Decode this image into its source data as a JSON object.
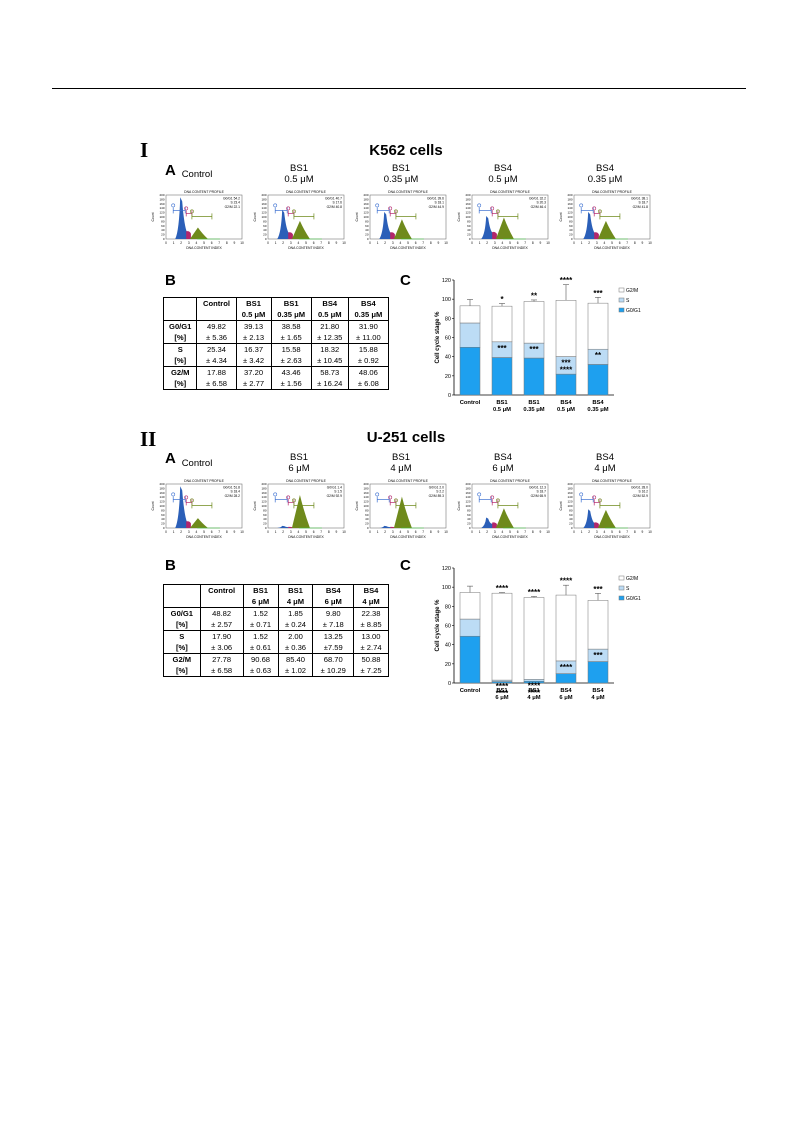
{
  "figure": {
    "section_I": {
      "roman": "I",
      "title": "K562 cells",
      "panel_A": "A",
      "panel_B": "B",
      "panel_C": "C",
      "histograms": [
        {
          "name_line1": "Control",
          "name_line2": "",
          "title": "DNA CONTENT PROFILE",
          "xlabel": "DNA CONTENT INDEX",
          "ylabel": "Count",
          "stats": [
            "G0/G1 54.2",
            "S 23.4",
            "G2/M 22.1"
          ],
          "g1": 1.0,
          "s": 0.35,
          "g2": 0.35
        },
        {
          "name_line1": "BS1",
          "name_line2": "0.5 μM",
          "title": "DNA CONTENT PROFILE",
          "xlabel": "DNA CONTENT INDEX",
          "ylabel": "Count",
          "stats": [
            "G0/G1 40.7",
            "S 17.6",
            "G2/M 40.8"
          ],
          "g1": 0.7,
          "s": 0.3,
          "g2": 0.55
        },
        {
          "name_line1": "BS1",
          "name_line2": "0.35 μM",
          "title": "DNA CONTENT PROFILE",
          "xlabel": "DNA CONTENT INDEX",
          "ylabel": "Count",
          "stats": [
            "G0/G1 39.6",
            "S 18.1",
            "G2/M 44.9"
          ],
          "g1": 0.65,
          "s": 0.3,
          "g2": 0.6
        },
        {
          "name_line1": "BS4",
          "name_line2": "0.5 μM",
          "title": "DNA CONTENT PROFILE",
          "xlabel": "DNA CONTENT INDEX",
          "ylabel": "Count",
          "stats": [
            "G0/G1 32.2",
            "S 20.3",
            "G2/M 46.4"
          ],
          "g1": 0.55,
          "s": 0.32,
          "g2": 0.65
        },
        {
          "name_line1": "BS4",
          "name_line2": "0.35 μM",
          "title": "DNA CONTENT PROFILE",
          "xlabel": "DNA CONTENT INDEX",
          "ylabel": "Count",
          "stats": [
            "G0/G1 38.1",
            "S 18.7",
            "G2/M 41.8"
          ],
          "g1": 0.65,
          "s": 0.3,
          "g2": 0.55
        }
      ],
      "table": {
        "headers": [
          [
            "",
            ""
          ],
          [
            "Control",
            ""
          ],
          [
            "BS1",
            "0.5 μM"
          ],
          [
            "BS1",
            "0.35 μM"
          ],
          [
            "BS4",
            "0.5 μM"
          ],
          [
            "BS4",
            "0.35 μM"
          ]
        ],
        "rows": [
          {
            "label": [
              "G0/G1",
              "[%]"
            ],
            "values": [
              [
                "49.82",
                "± 5.36"
              ],
              [
                "39.13",
                "± 2.13"
              ],
              [
                "38.58",
                "± 1.65"
              ],
              [
                "21.80",
                "± 12.35"
              ],
              [
                "31.90",
                "± 11.00"
              ]
            ]
          },
          {
            "label": [
              "S",
              "[%]"
            ],
            "values": [
              [
                "25.34",
                "± 4.34"
              ],
              [
                "16.37",
                "± 3.42"
              ],
              [
                "15.58",
                "± 2.63"
              ],
              [
                "18.32",
                "± 10.45"
              ],
              [
                "15.88",
                "± 0.92"
              ]
            ]
          },
          {
            "label": [
              "G2/M",
              "[%]"
            ],
            "values": [
              [
                "17.88",
                "± 6.58"
              ],
              [
                "37.20",
                "± 2.77"
              ],
              [
                "43.46",
                "± 1.56"
              ],
              [
                "58.73",
                "± 16.24"
              ],
              [
                "48.06",
                "± 6.08"
              ]
            ]
          }
        ]
      }
    },
    "section_II": {
      "roman": "II",
      "title": "U-251 cells",
      "panel_A": "A",
      "panel_B": "B",
      "panel_C": "C",
      "histograms": [
        {
          "name_line1": "Control",
          "name_line2": "",
          "title": "DNA CONTENT PROFILE",
          "xlabel": "DNA CONTENT INDEX",
          "ylabel": "Count",
          "stats": [
            "G0/G1 51.8",
            "S 18.4",
            "G2/M 28.2"
          ],
          "g1": 1.0,
          "s": 0.3,
          "g2": 0.3
        },
        {
          "name_line1": "BS1",
          "name_line2": "6 μM",
          "title": "DNA CONTENT PROFILE",
          "xlabel": "DNA CONTENT INDEX",
          "ylabel": "Count",
          "stats": [
            "G0/G1 1.4",
            "S 1.5",
            "G2/M 92.9"
          ],
          "g1": 0.05,
          "s": 0.05,
          "g2": 1.0
        },
        {
          "name_line1": "BS1",
          "name_line2": "4 μM",
          "title": "DNA CONTENT PROFILE",
          "xlabel": "DNA CONTENT INDEX",
          "ylabel": "Count",
          "stats": [
            "G0/G1 2.0",
            "S 2.2",
            "G2/M 89.3"
          ],
          "g1": 0.05,
          "s": 0.05,
          "g2": 0.95
        },
        {
          "name_line1": "BS4",
          "name_line2": "6 μM",
          "title": "DNA CONTENT PROFILE",
          "xlabel": "DNA CONTENT INDEX",
          "ylabel": "Count",
          "stats": [
            "G0/G1 12.3",
            "S 18.7",
            "G2/M 65.9"
          ],
          "g1": 0.25,
          "s": 0.25,
          "g2": 0.6
        },
        {
          "name_line1": "BS4",
          "name_line2": "4 μM",
          "title": "DNA CONTENT PROFILE",
          "xlabel": "DNA CONTENT INDEX",
          "ylabel": "Count",
          "stats": [
            "G0/G1 28.0",
            "S 16.2",
            "G2/M 52.9"
          ],
          "g1": 0.45,
          "s": 0.25,
          "g2": 0.55
        }
      ],
      "table": {
        "headers": [
          [
            "",
            ""
          ],
          [
            "Control",
            ""
          ],
          [
            "BS1",
            "6 μM"
          ],
          [
            "BS1",
            "4 μM"
          ],
          [
            "BS4",
            "6 μM"
          ],
          [
            "BS4",
            "4 μM"
          ]
        ],
        "rows": [
          {
            "label": [
              "G0/G1",
              "[%]"
            ],
            "values": [
              [
                "48.82",
                "± 2.57"
              ],
              [
                "1.52",
                "± 0.71"
              ],
              [
                "1.85",
                "± 0.24"
              ],
              [
                "9.80",
                "± 7.18"
              ],
              [
                "22.38",
                "± 8.85"
              ]
            ]
          },
          {
            "label": [
              "S",
              "[%]"
            ],
            "values": [
              [
                "17.90",
                "± 3.06"
              ],
              [
                "1.52",
                "± 0.61"
              ],
              [
                "2.00",
                "± 0.36"
              ],
              [
                "13.25",
                "±7.59"
              ],
              [
                "13.00",
                "± 2.74"
              ]
            ]
          },
          {
            "label": [
              "G2/M",
              "[%]"
            ],
            "values": [
              [
                "27.78",
                "± 6.58"
              ],
              [
                "90.68",
                "± 0.63"
              ],
              [
                "85.40",
                "± 1.02"
              ],
              [
                "68.70",
                "± 10.29"
              ],
              [
                "50.88",
                "± 7.25"
              ]
            ]
          }
        ]
      }
    }
  },
  "chart_data": [
    {
      "type": "bar",
      "stacked": true,
      "ylabel": "Cell cycle stage %",
      "ylim": [
        0,
        120
      ],
      "yticks": [
        0,
        20,
        40,
        60,
        80,
        100,
        120
      ],
      "categories": [
        [
          "Control",
          ""
        ],
        [
          "BS1",
          "0.5 μM"
        ],
        [
          "BS1",
          "0.35 μM"
        ],
        [
          "BS4",
          "0.5 μM"
        ],
        [
          "BS4",
          "0.35 μM"
        ]
      ],
      "legend": "right",
      "series": [
        {
          "name": "G0/G1",
          "color": "#1ea0ef",
          "values": [
            49.82,
            39.13,
            38.58,
            21.8,
            31.9
          ],
          "errors": [
            5.36,
            2.13,
            1.65,
            12.35,
            11.0
          ]
        },
        {
          "name": "S",
          "color": "#bcdcf5",
          "values": [
            25.34,
            16.37,
            15.58,
            18.32,
            15.88
          ],
          "errors": [
            4.34,
            3.42,
            2.63,
            10.45,
            0.92
          ]
        },
        {
          "name": "G2/M",
          "color": "#ffffff",
          "values": [
            17.88,
            37.2,
            43.46,
            58.73,
            48.06
          ],
          "errors": [
            6.58,
            2.77,
            1.56,
            16.24,
            6.08
          ]
        }
      ],
      "significance_top": [
        "",
        "*",
        "**",
        "****",
        "***"
      ],
      "significance_mid": [
        "",
        "***",
        "***",
        "***",
        "**"
      ],
      "significance_low": [
        "",
        "",
        "",
        "****",
        ""
      ]
    },
    {
      "type": "bar",
      "stacked": true,
      "ylabel": "Cell cycle stage %",
      "ylim": [
        0,
        120
      ],
      "yticks": [
        0,
        20,
        40,
        60,
        80,
        100,
        120
      ],
      "categories": [
        [
          "Control",
          ""
        ],
        [
          "BS1",
          "6 μM"
        ],
        [
          "BS1",
          "4 μM"
        ],
        [
          "BS4",
          "6 μM"
        ],
        [
          "BS4",
          "4 μM"
        ]
      ],
      "legend": "right",
      "series": [
        {
          "name": "G0/G1",
          "color": "#1ea0ef",
          "values": [
            48.82,
            1.52,
            1.85,
            9.8,
            22.38
          ],
          "errors": [
            2.57,
            0.71,
            0.24,
            7.18,
            8.85
          ]
        },
        {
          "name": "S",
          "color": "#bcdcf5",
          "values": [
            17.9,
            1.52,
            2.0,
            13.25,
            13.0
          ],
          "errors": [
            3.06,
            0.61,
            0.36,
            7.59,
            2.74
          ]
        },
        {
          "name": "G2/M",
          "color": "#ffffff",
          "values": [
            27.78,
            90.68,
            85.4,
            68.7,
            50.88
          ],
          "errors": [
            6.58,
            0.63,
            1.02,
            10.29,
            7.25
          ]
        }
      ],
      "significance_top": [
        "",
        "****",
        "****",
        "****",
        "***"
      ],
      "significance_mid": [
        "",
        "****",
        "****",
        "****",
        "***"
      ],
      "significance_low": [
        "",
        "****",
        "****",
        "",
        ""
      ]
    }
  ]
}
